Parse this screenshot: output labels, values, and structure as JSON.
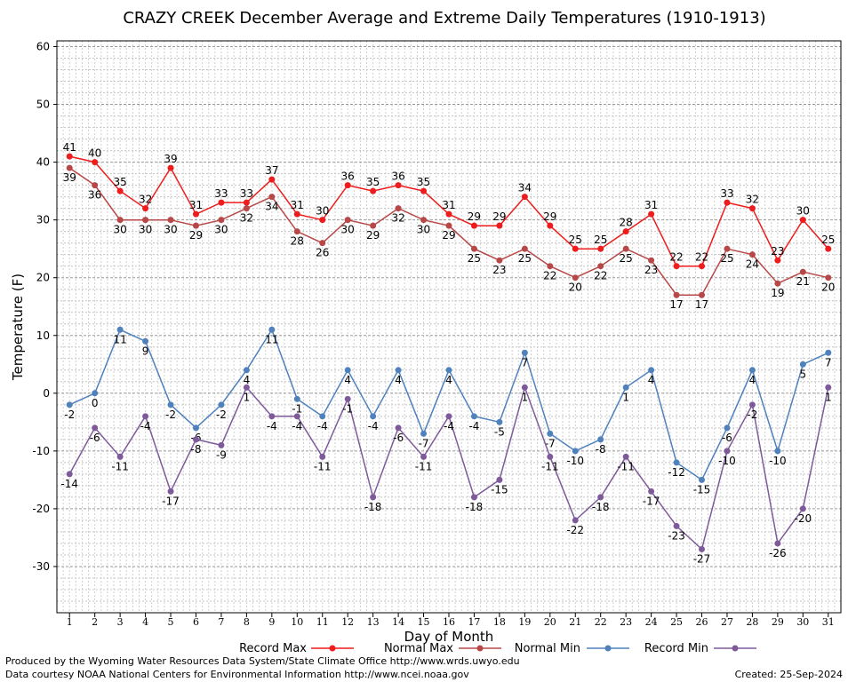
{
  "chart_data": {
    "type": "line",
    "title": "CRAZY CREEK December Average and Extreme Daily Temperatures (1910-1913)",
    "xlabel": "Day of Month",
    "ylabel": "Temperature (F)",
    "ylim": [
      -38,
      61
    ],
    "yticks": [
      -30,
      -20,
      -10,
      0,
      10,
      20,
      30,
      40,
      50,
      60
    ],
    "grid": true,
    "legend": "bottom",
    "x": [
      1,
      2,
      3,
      4,
      5,
      6,
      7,
      8,
      9,
      10,
      11,
      12,
      13,
      14,
      15,
      16,
      17,
      18,
      19,
      20,
      21,
      22,
      23,
      24,
      25,
      26,
      27,
      28,
      29,
      30,
      31
    ],
    "series": [
      {
        "name": "Record Max",
        "color": "#ee1c1c",
        "values": [
          41,
          40,
          35,
          32,
          39,
          31,
          33,
          33,
          37,
          31,
          30,
          36,
          35,
          36,
          35,
          31,
          29,
          29,
          34,
          29,
          25,
          25,
          28,
          31,
          22,
          22,
          33,
          32,
          23,
          30,
          25
        ]
      },
      {
        "name": "Normal Max",
        "color": "#b84848",
        "values": [
          39,
          36,
          30,
          30,
          30,
          29,
          30,
          32,
          34,
          28,
          26,
          30,
          29,
          32,
          30,
          29,
          25,
          23,
          25,
          22,
          20,
          22,
          25,
          23,
          17,
          17,
          25,
          24,
          19,
          21,
          20
        ]
      },
      {
        "name": "Normal Min",
        "color": "#4f81bd",
        "values": [
          -2,
          0,
          11,
          9,
          -2,
          -6,
          -2,
          4,
          11,
          -1,
          -4,
          4,
          -4,
          4,
          -7,
          4,
          -4,
          -5,
          7,
          -7,
          -10,
          -8,
          1,
          4,
          -12,
          -15,
          -6,
          4,
          -10,
          5,
          7
        ]
      },
      {
        "name": "Record Min",
        "color": "#7e5a9b",
        "values": [
          -14,
          -6,
          -11,
          -4,
          -17,
          -8,
          -9,
          1,
          -4,
          -4,
          -11,
          -1,
          -18,
          -6,
          -11,
          -4,
          -18,
          -15,
          1,
          -11,
          -22,
          -18,
          -11,
          -17,
          -23,
          -27,
          -10,
          -2,
          -26,
          -20,
          1
        ]
      }
    ]
  },
  "footer": {
    "produced_by": "Produced by the Wyoming Water Resources Data System/State Climate Office http://www.wrds.uwyo.edu",
    "data_courtesy": "Data courtesy NOAA National Centers for Environmental Information http://www.ncei.noaa.gov",
    "created": "Created:  25-Sep-2024"
  }
}
